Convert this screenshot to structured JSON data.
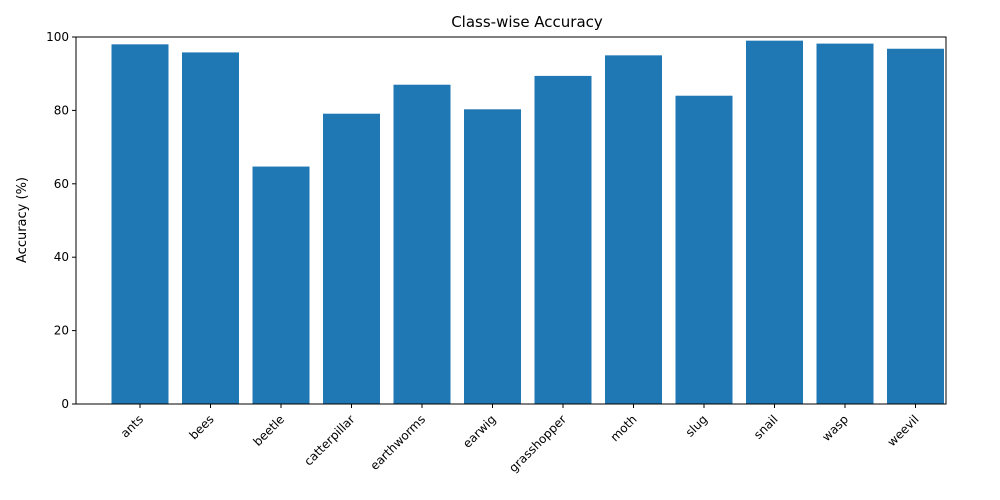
{
  "chart_data": {
    "type": "bar",
    "title": "Class-wise Accuracy",
    "xlabel": "",
    "ylabel": "Accuracy (%)",
    "ylim": [
      0,
      100
    ],
    "yticks": [
      0,
      20,
      40,
      60,
      80,
      100
    ],
    "categories": [
      "ants",
      "bees",
      "beetle",
      "catterpillar",
      "earthworms",
      "earwig",
      "grasshopper",
      "moth",
      "slug",
      "snail",
      "wasp",
      "weevil"
    ],
    "values": [
      98.0,
      95.8,
      64.7,
      79.1,
      87.0,
      80.3,
      89.4,
      95.0,
      84.0,
      99.0,
      98.2,
      96.8
    ],
    "bar_color": "#1f77b4",
    "grid": false,
    "xtick_rotation": 45
  }
}
